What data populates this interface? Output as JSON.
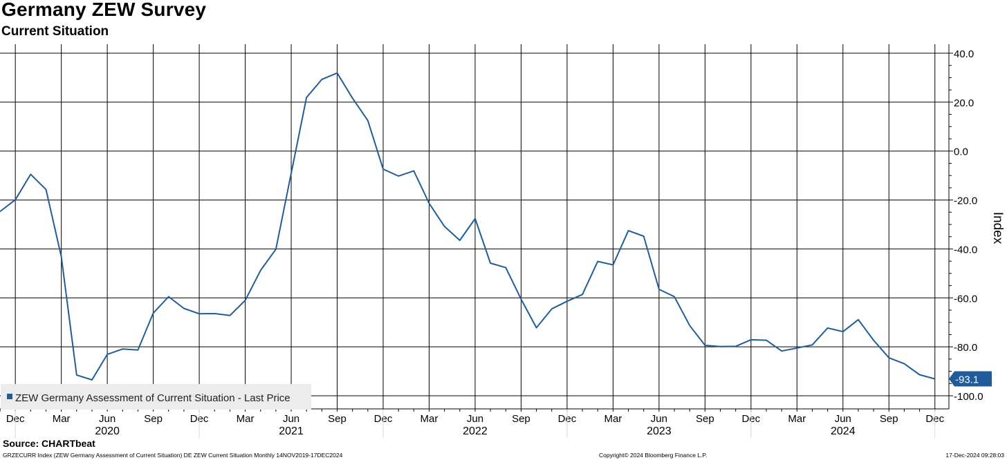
{
  "header": {
    "title": "Germany ZEW Survey",
    "subtitle": "Current Situation"
  },
  "footer": {
    "source": "Source: CHARTbeat",
    "ticker": "GRZECURR Index (ZEW Germany Assessment of Current Situation) DE ZEW Current Situation  Monthly 14NOV2019-17DEC2024",
    "copyright": "Copyright© 2024 Bloomberg Finance L.P.",
    "timestamp": "17-Dec-2024 09:28:03"
  },
  "colors": {
    "series": "#1f5c99",
    "grid": "#000000",
    "background": "#ffffff",
    "last_value_tag": "#1f5c99",
    "last_value_text": "#ffffff"
  },
  "chart_data": {
    "type": "line",
    "title": "Germany ZEW Survey",
    "subtitle": "Current Situation",
    "ylabel": "Index",
    "ylim": [
      -100,
      40
    ],
    "y_ticks": [
      "40.0",
      "20.0",
      "0.0",
      "-20.0",
      "-40.0",
      "-60.0",
      "-80.0",
      "-100.0"
    ],
    "y_tick_values": [
      40,
      20,
      0,
      -20,
      -40,
      -60,
      -80,
      -100
    ],
    "y_axis_side": "right",
    "x_start": "2019-11",
    "x_end": "2024-12",
    "x_month_ticks": [
      {
        "date": "2019-12",
        "label": "Dec"
      },
      {
        "date": "2020-03",
        "label": "Mar"
      },
      {
        "date": "2020-06",
        "label": "Jun"
      },
      {
        "date": "2020-09",
        "label": "Sep"
      },
      {
        "date": "2020-12",
        "label": "Dec"
      },
      {
        "date": "2021-03",
        "label": "Mar"
      },
      {
        "date": "2021-06",
        "label": "Jun"
      },
      {
        "date": "2021-09",
        "label": "Sep"
      },
      {
        "date": "2021-12",
        "label": "Dec"
      },
      {
        "date": "2022-03",
        "label": "Mar"
      },
      {
        "date": "2022-06",
        "label": "Jun"
      },
      {
        "date": "2022-09",
        "label": "Sep"
      },
      {
        "date": "2022-12",
        "label": "Dec"
      },
      {
        "date": "2023-03",
        "label": "Mar"
      },
      {
        "date": "2023-06",
        "label": "Jun"
      },
      {
        "date": "2023-09",
        "label": "Sep"
      },
      {
        "date": "2023-12",
        "label": "Dec"
      },
      {
        "date": "2024-03",
        "label": "Mar"
      },
      {
        "date": "2024-06",
        "label": "Jun"
      },
      {
        "date": "2024-09",
        "label": "Sep"
      },
      {
        "date": "2024-12",
        "label": "Dec"
      }
    ],
    "x_year_labels": [
      {
        "date": "2020-06",
        "label": "2020"
      },
      {
        "date": "2021-06",
        "label": "2021"
      },
      {
        "date": "2022-06",
        "label": "2022"
      },
      {
        "date": "2023-06",
        "label": "2023"
      },
      {
        "date": "2024-06",
        "label": "2024"
      }
    ],
    "x_year_boundaries": [
      "2019-12",
      "2020-12",
      "2021-12",
      "2022-12",
      "2023-12",
      "2024-12"
    ],
    "grid": true,
    "legend_placement": "bottom-left",
    "last_value_label": "-93.1",
    "series": [
      {
        "name": "ZEW Germany Assessment of Current Situation - Last Price",
        "x": [
          "2019-11",
          "2019-12",
          "2020-01",
          "2020-02",
          "2020-03",
          "2020-04",
          "2020-05",
          "2020-06",
          "2020-07",
          "2020-08",
          "2020-09",
          "2020-10",
          "2020-11",
          "2020-12",
          "2021-01",
          "2021-02",
          "2021-03",
          "2021-04",
          "2021-05",
          "2021-06",
          "2021-07",
          "2021-08",
          "2021-09",
          "2021-10",
          "2021-11",
          "2021-12",
          "2022-01",
          "2022-02",
          "2022-03",
          "2022-04",
          "2022-05",
          "2022-06",
          "2022-07",
          "2022-08",
          "2022-09",
          "2022-10",
          "2022-11",
          "2022-12",
          "2023-01",
          "2023-02",
          "2023-03",
          "2023-04",
          "2023-05",
          "2023-06",
          "2023-07",
          "2023-08",
          "2023-09",
          "2023-10",
          "2023-11",
          "2023-12",
          "2024-01",
          "2024-02",
          "2024-03",
          "2024-04",
          "2024-05",
          "2024-06",
          "2024-07",
          "2024-08",
          "2024-09",
          "2024-10",
          "2024-11",
          "2024-12"
        ],
        "values": [
          -24.7,
          -19.9,
          -9.5,
          -15.7,
          -43.1,
          -91.5,
          -93.5,
          -83.1,
          -80.9,
          -81.3,
          -66.2,
          -59.5,
          -64.3,
          -66.5,
          -66.4,
          -67.2,
          -61.0,
          -48.8,
          -40.1,
          -9.1,
          21.9,
          29.3,
          31.9,
          21.6,
          12.5,
          -7.4,
          -10.2,
          -8.1,
          -21.4,
          -30.8,
          -36.5,
          -27.6,
          -45.8,
          -47.6,
          -60.5,
          -72.2,
          -64.5,
          -61.4,
          -58.6,
          -45.1,
          -46.5,
          -32.5,
          -34.8,
          -56.5,
          -59.5,
          -71.3,
          -79.4,
          -79.9,
          -79.8,
          -77.1,
          -77.3,
          -81.7,
          -80.5,
          -79.2,
          -72.3,
          -73.8,
          -68.9,
          -77.3,
          -84.5,
          -86.9,
          -91.4,
          -93.1
        ]
      }
    ]
  }
}
